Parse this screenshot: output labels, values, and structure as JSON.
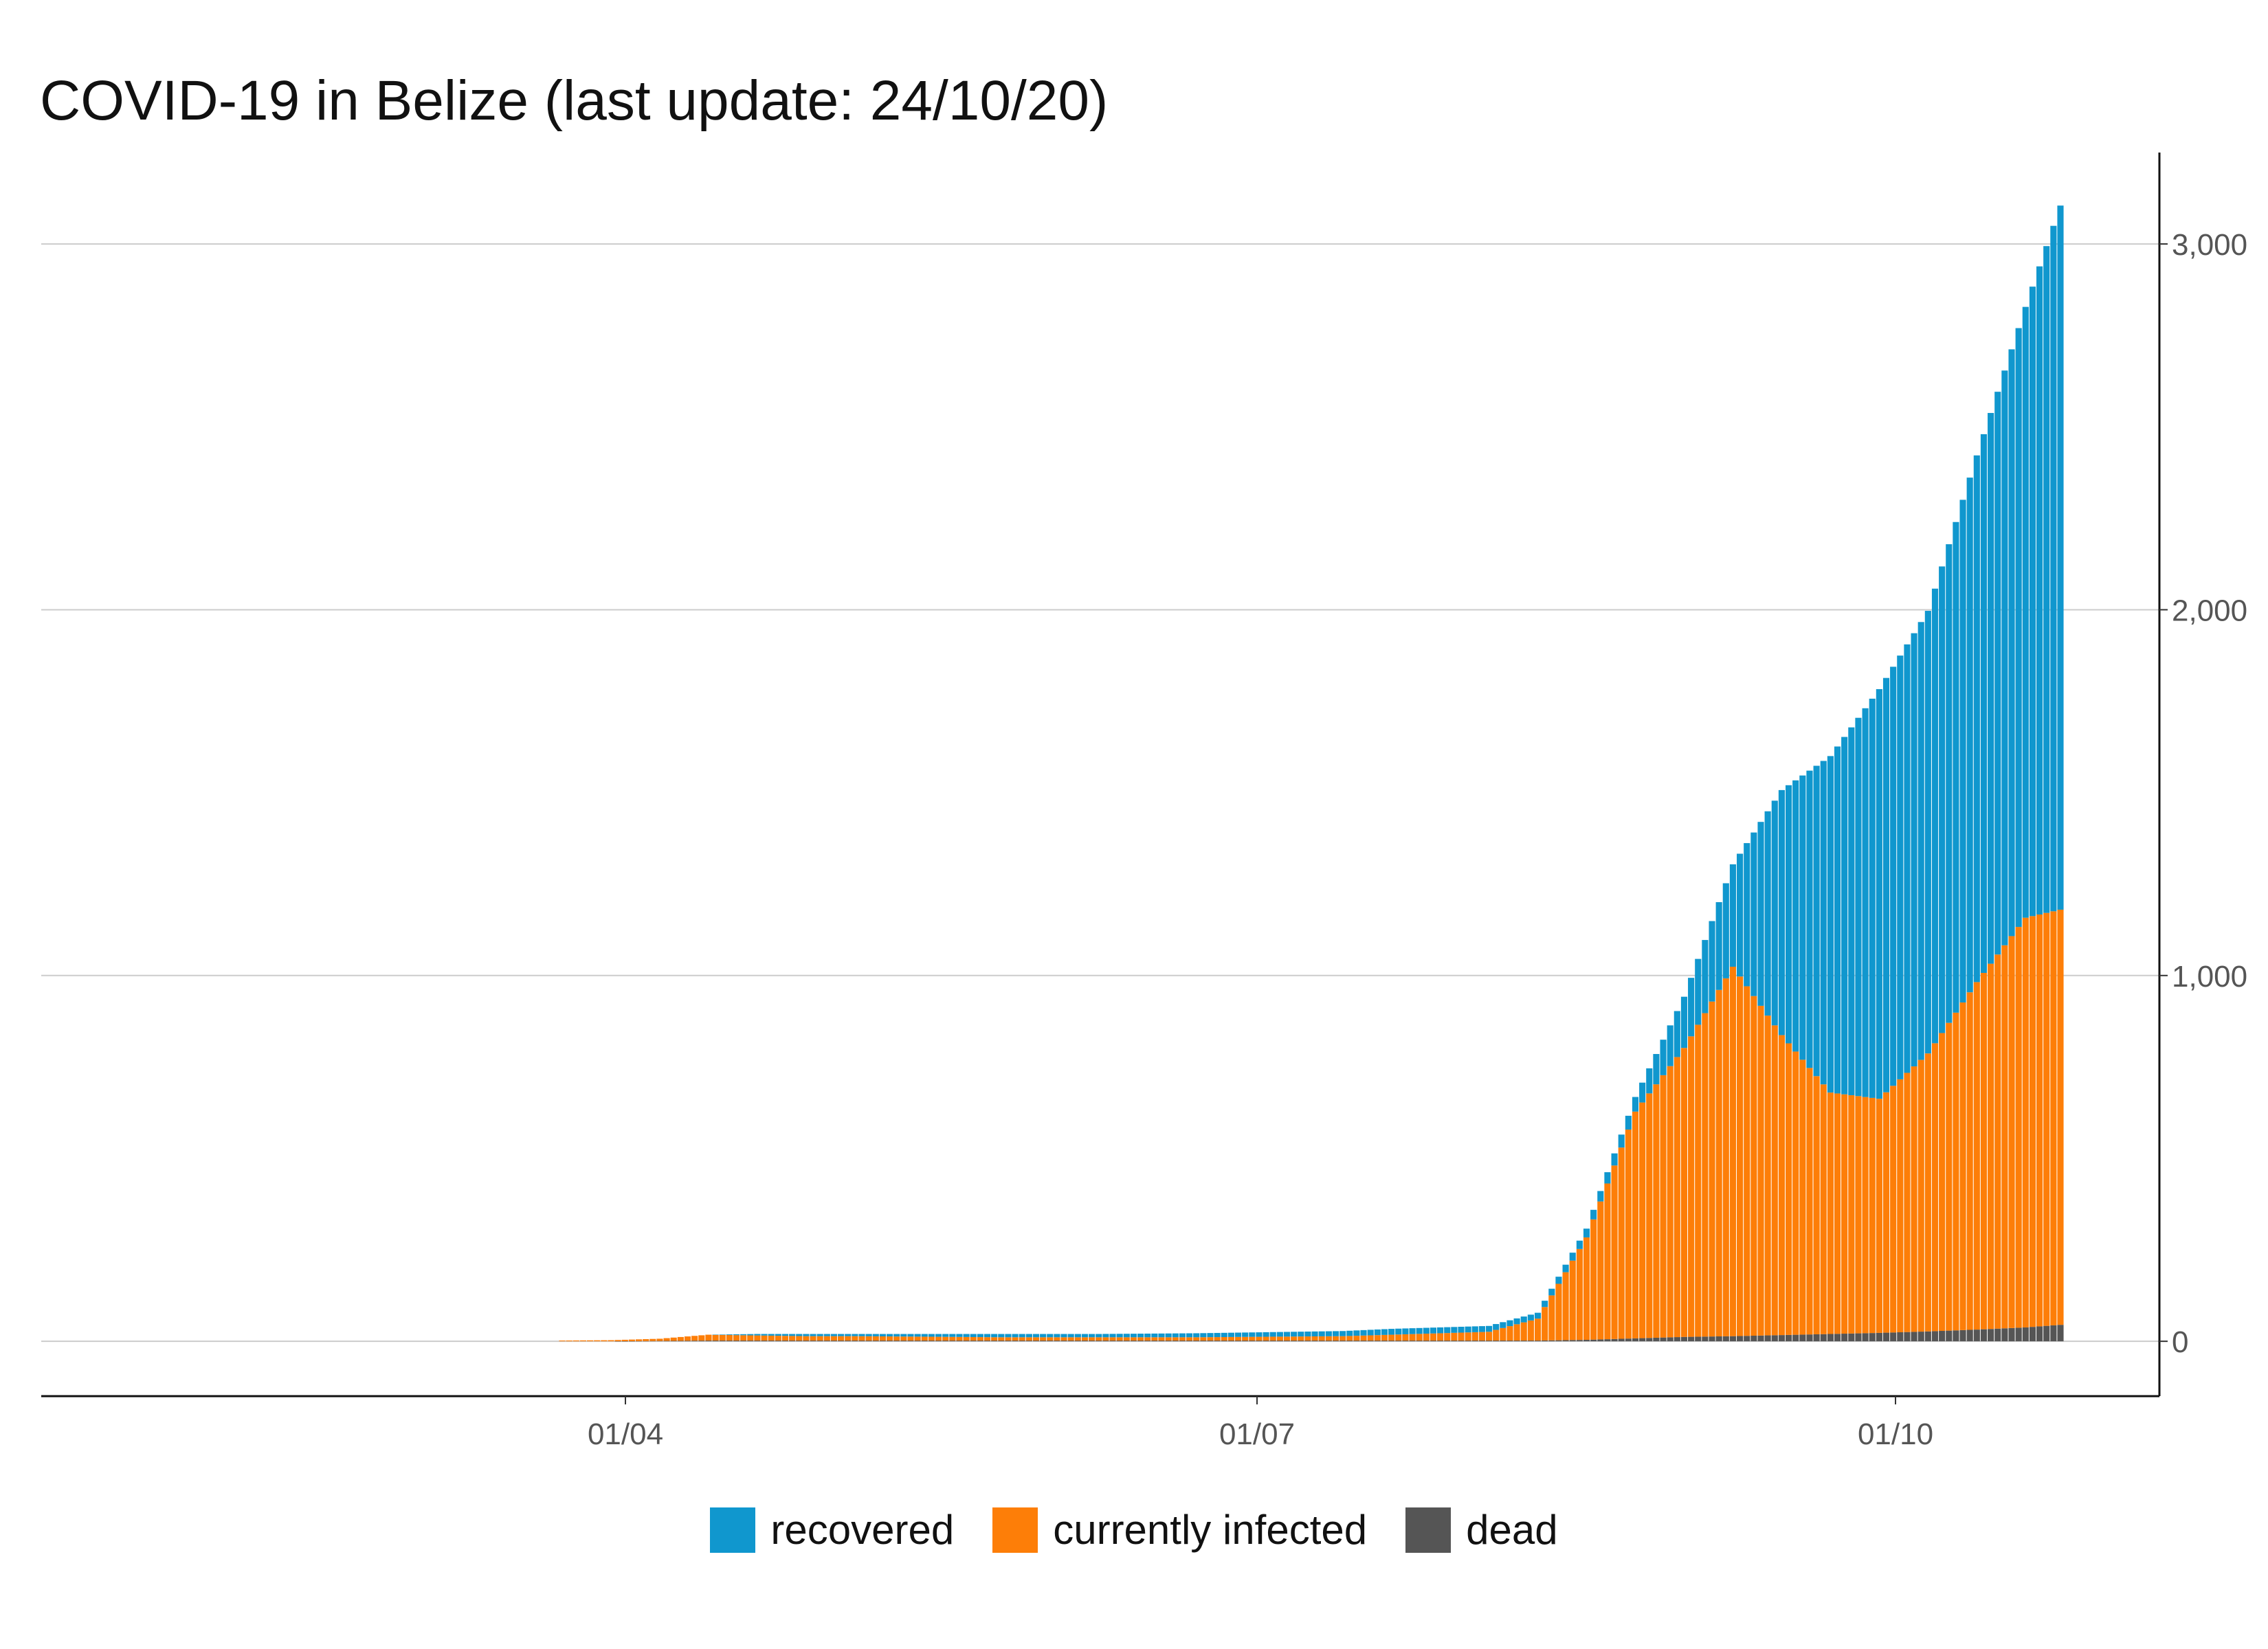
{
  "chart_data": {
    "type": "bar",
    "stacked": true,
    "title": "COVID-19 in Belize (last update: 24/10/20)",
    "xlabel": "",
    "ylabel": "",
    "ylim": [
      -150,
      3250
    ],
    "y_ticks": [
      0,
      1000,
      2000,
      3000
    ],
    "y_tick_labels": [
      "0",
      "1,000",
      "2,000",
      "3,000"
    ],
    "y_axis_position": "right",
    "x_tick_labels": [
      "01/04",
      "01/07",
      "01/10"
    ],
    "grid": true,
    "legend_position": "bottom",
    "colors": {
      "recovered": "#1097ce",
      "currently_infected": "#fd7e08",
      "dead": "#555555"
    },
    "legend": [
      {
        "key": "recovered",
        "label": "recovered"
      },
      {
        "key": "currently_infected",
        "label": "currently infected"
      },
      {
        "key": "dead",
        "label": "dead"
      }
    ],
    "dates": [
      "23/03",
      "30/03",
      "06/04",
      "13/04",
      "20/04",
      "27/04",
      "04/05",
      "11/05",
      "18/05",
      "25/05",
      "01/06",
      "08/06",
      "15/06",
      "22/06",
      "29/06",
      "06/07",
      "13/07",
      "20/07",
      "27/07",
      "03/08",
      "10/08",
      "17/08",
      "24/08",
      "31/08",
      "07/09",
      "14/09",
      "21/09",
      "28/09",
      "05/10",
      "12/10",
      "19/10",
      "24/10"
    ],
    "series": [
      {
        "name": "dead",
        "values": [
          0,
          0,
          1,
          2,
          2,
          2,
          2,
          2,
          2,
          2,
          2,
          2,
          2,
          2,
          2,
          2,
          2,
          2,
          2,
          2,
          2,
          4,
          8,
          12,
          14,
          17,
          20,
          23,
          27,
          32,
          38,
          45
        ]
      },
      {
        "name": "currently infected",
        "values": [
          2,
          3,
          6,
          16,
          14,
          12,
          12,
          11,
          10,
          9,
          9,
          9,
          9,
          9,
          10,
          11,
          12,
          16,
          20,
          24,
          60,
          280,
          620,
          790,
          1010,
          820,
          660,
          640,
          760,
          950,
          1120,
          1135
        ]
      },
      {
        "name": "recovered",
        "values": [
          0,
          0,
          0,
          0,
          4,
          6,
          6,
          7,
          8,
          9,
          9,
          9,
          10,
          11,
          12,
          13,
          14,
          16,
          16,
          16,
          16,
          24,
          40,
          140,
          280,
          670,
          920,
          1120,
          1210,
          1440,
          1670,
          1925
        ]
      }
    ]
  }
}
